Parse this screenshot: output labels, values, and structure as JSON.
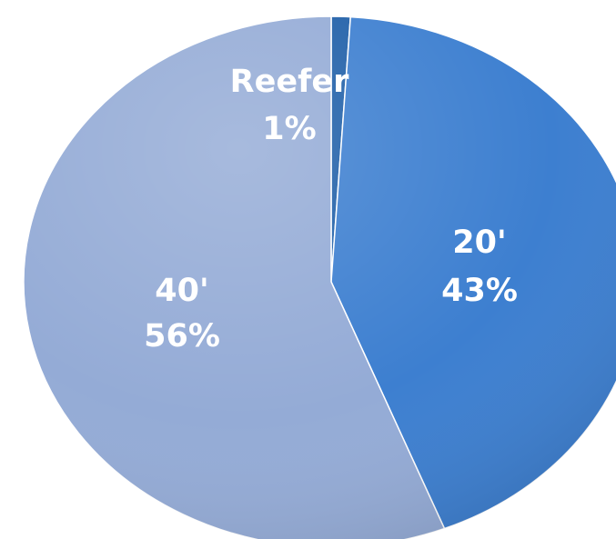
{
  "chart_data": {
    "type": "pie",
    "title": "",
    "slices": [
      {
        "name": "Reefer",
        "value": 1,
        "label": "Reefer",
        "pct_label": "1%",
        "color": "#1f5fa8"
      },
      {
        "name": "20'",
        "value": 43,
        "label": "20'",
        "pct_label": "43%",
        "color": "#3d7fd0"
      },
      {
        "name": "40'",
        "value": 56,
        "label": "40'",
        "pct_label": "56%",
        "color": "#94abd6"
      }
    ],
    "legend": "none",
    "data_labels": "inside"
  }
}
